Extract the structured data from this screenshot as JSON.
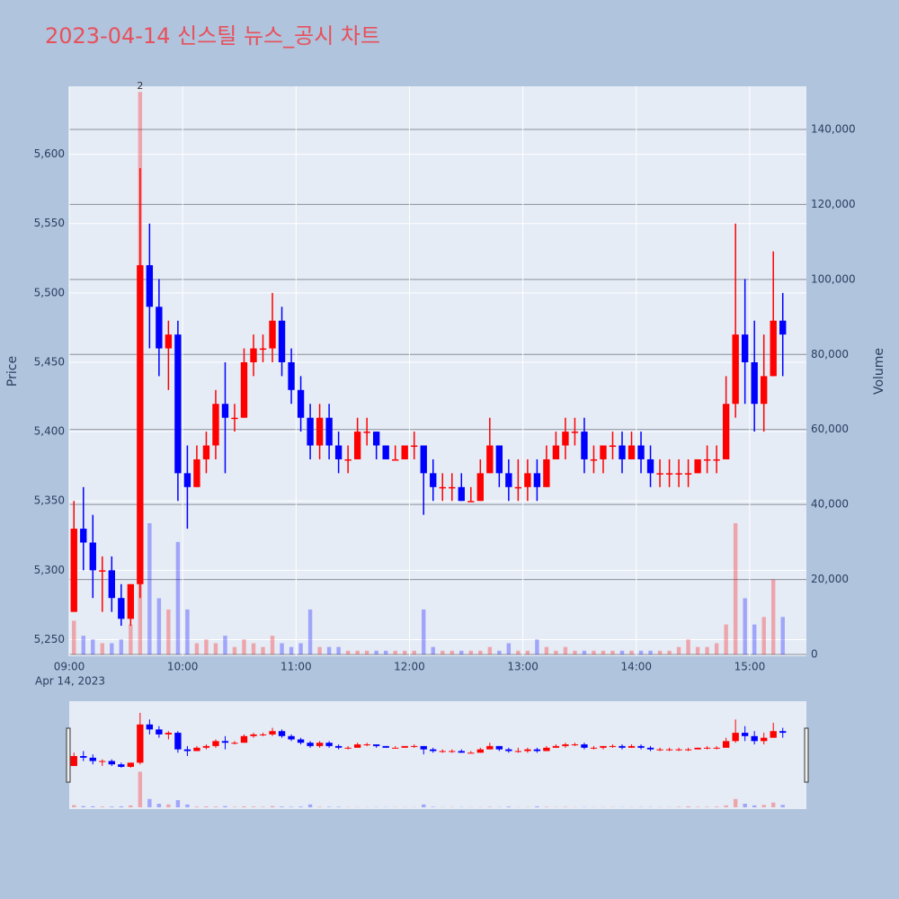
{
  "chart_data": {
    "type": "candlestick",
    "title": "2023-04-14 신스틸 뉴스_공시 차트",
    "y_label": "Price",
    "y2_label": "Volume",
    "x_date_label": "Apr 14, 2023",
    "increasing_color": "#ff0000",
    "decreasing_color": "#0000ff",
    "annotations": [
      {
        "text": "2",
        "x": "09:35"
      }
    ],
    "x": [
      "09:00",
      "09:05",
      "09:10",
      "09:15",
      "09:20",
      "09:25",
      "09:30",
      "09:35",
      "09:40",
      "09:45",
      "09:50",
      "09:55",
      "10:00",
      "10:05",
      "10:10",
      "10:15",
      "10:20",
      "10:25",
      "10:30",
      "10:35",
      "10:40",
      "10:45",
      "10:50",
      "10:55",
      "11:00",
      "11:05",
      "11:10",
      "11:15",
      "11:20",
      "11:25",
      "11:30",
      "11:35",
      "11:40",
      "11:45",
      "11:50",
      "11:55",
      "12:00",
      "12:05",
      "12:10",
      "12:15",
      "12:20",
      "12:25",
      "12:30",
      "12:35",
      "12:40",
      "12:45",
      "12:50",
      "12:55",
      "13:00",
      "13:05",
      "13:10",
      "13:15",
      "13:20",
      "13:25",
      "13:30",
      "13:35",
      "13:40",
      "13:45",
      "13:50",
      "13:55",
      "14:00",
      "14:05",
      "14:10",
      "14:15",
      "14:20",
      "14:25",
      "14:30",
      "14:35",
      "14:40",
      "14:45",
      "14:50",
      "14:55",
      "15:00",
      "15:05",
      "15:10",
      "15:15"
    ],
    "open": [
      5270,
      5330,
      5320,
      5300,
      5300,
      5280,
      5265,
      5290,
      5520,
      5490,
      5460,
      5470,
      5370,
      5360,
      5380,
      5390,
      5420,
      5410,
      5410,
      5450,
      5460,
      5460,
      5480,
      5450,
      5430,
      5410,
      5390,
      5410,
      5390,
      5380,
      5380,
      5400,
      5400,
      5390,
      5380,
      5380,
      5390,
      5390,
      5370,
      5360,
      5360,
      5360,
      5350,
      5350,
      5370,
      5390,
      5370,
      5360,
      5360,
      5370,
      5360,
      5380,
      5390,
      5400,
      5400,
      5380,
      5380,
      5390,
      5390,
      5380,
      5390,
      5380,
      5370,
      5370,
      5370,
      5370,
      5370,
      5380,
      5380,
      5380,
      5420,
      5470,
      5450,
      5420,
      5440,
      5480
    ],
    "high": [
      5350,
      5360,
      5340,
      5310,
      5310,
      5290,
      5290,
      5590,
      5550,
      5510,
      5480,
      5480,
      5390,
      5390,
      5400,
      5430,
      5450,
      5420,
      5460,
      5470,
      5470,
      5500,
      5490,
      5460,
      5440,
      5420,
      5420,
      5420,
      5400,
      5390,
      5410,
      5410,
      5400,
      5390,
      5390,
      5390,
      5400,
      5390,
      5380,
      5370,
      5370,
      5370,
      5360,
      5380,
      5410,
      5390,
      5380,
      5380,
      5380,
      5380,
      5390,
      5400,
      5410,
      5410,
      5410,
      5390,
      5390,
      5400,
      5400,
      5400,
      5400,
      5390,
      5380,
      5380,
      5380,
      5380,
      5380,
      5390,
      5390,
      5440,
      5550,
      5510,
      5480,
      5470,
      5530,
      5500
    ],
    "low": [
      5270,
      5300,
      5280,
      5270,
      5270,
      5260,
      5260,
      5280,
      5460,
      5440,
      5430,
      5350,
      5330,
      5360,
      5370,
      5380,
      5370,
      5400,
      5410,
      5440,
      5450,
      5450,
      5440,
      5420,
      5400,
      5380,
      5380,
      5380,
      5370,
      5370,
      5380,
      5390,
      5380,
      5380,
      5380,
      5380,
      5380,
      5340,
      5350,
      5350,
      5350,
      5350,
      5350,
      5350,
      5370,
      5360,
      5350,
      5350,
      5350,
      5350,
      5360,
      5380,
      5380,
      5390,
      5370,
      5370,
      5370,
      5380,
      5370,
      5380,
      5370,
      5360,
      5360,
      5360,
      5360,
      5360,
      5370,
      5370,
      5370,
      5380,
      5410,
      5420,
      5400,
      5400,
      5440,
      5440
    ],
    "close": [
      5330,
      5320,
      5300,
      5300,
      5280,
      5265,
      5290,
      5520,
      5490,
      5460,
      5470,
      5370,
      5360,
      5380,
      5390,
      5420,
      5410,
      5410,
      5450,
      5460,
      5460,
      5480,
      5450,
      5430,
      5410,
      5390,
      5410,
      5390,
      5380,
      5380,
      5400,
      5400,
      5390,
      5380,
      5380,
      5390,
      5390,
      5370,
      5360,
      5360,
      5360,
      5350,
      5350,
      5370,
      5390,
      5370,
      5360,
      5360,
      5370,
      5360,
      5380,
      5390,
      5400,
      5400,
      5380,
      5380,
      5390,
      5390,
      5380,
      5390,
      5380,
      5370,
      5370,
      5370,
      5370,
      5370,
      5380,
      5380,
      5380,
      5420,
      5470,
      5450,
      5420,
      5440,
      5480,
      5470
    ],
    "volume": [
      9000,
      5000,
      4000,
      3000,
      3000,
      4000,
      8000,
      150000,
      35000,
      15000,
      12000,
      30000,
      12000,
      3000,
      4000,
      3000,
      5000,
      2000,
      4000,
      3000,
      2000,
      5000,
      3000,
      2000,
      3000,
      12000,
      2000,
      2000,
      2000,
      1000,
      1000,
      1000,
      1000,
      1000,
      1000,
      1000,
      1000,
      12000,
      2000,
      1000,
      1000,
      1000,
      1000,
      1000,
      2000,
      1000,
      3000,
      1000,
      1000,
      4000,
      2000,
      1000,
      2000,
      1000,
      1000,
      1000,
      1000,
      1000,
      1000,
      1000,
      1000,
      1000,
      1000,
      1000,
      2000,
      4000,
      2000,
      2000,
      3000,
      8000,
      35000,
      15000,
      8000,
      10000,
      20000,
      10000
    ],
    "xlim": [
      "09:00",
      "15:30"
    ],
    "xticks": [
      "09:00",
      "10:00",
      "11:00",
      "12:00",
      "13:00",
      "14:00",
      "15:00"
    ],
    "ylim": [
      5238,
      5649
    ],
    "yticks": [
      {
        "value": 5250,
        "label": "5,250"
      },
      {
        "value": 5300,
        "label": "5,300"
      },
      {
        "value": 5350,
        "label": "5,350"
      },
      {
        "value": 5400,
        "label": "5,400"
      },
      {
        "value": 5450,
        "label": "5,450"
      },
      {
        "value": 5500,
        "label": "5,500"
      },
      {
        "value": 5550,
        "label": "5,550"
      },
      {
        "value": 5600,
        "label": "5,600"
      }
    ],
    "y2lim": [
      0,
      151500
    ],
    "y2ticks": [
      0,
      {
        "value": 20000,
        "label": "20,000"
      },
      {
        "value": 40000,
        "label": "40,000"
      },
      {
        "value": 60000,
        "label": "60,000"
      },
      {
        "value": 80000,
        "label": "80,000"
      },
      {
        "value": 100000,
        "label": "100,000"
      },
      {
        "value": 120000,
        "label": "120,000"
      },
      {
        "value": 140000,
        "label": "140,000"
      }
    ],
    "grid": true
  }
}
